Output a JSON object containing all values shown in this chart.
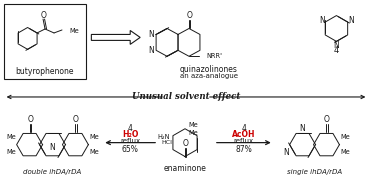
{
  "title": "Unusual solvent effect",
  "bg_color": "#ffffff",
  "text_color": "#1a1a1a",
  "red_color": "#cc0000",
  "figsize": [
    3.72,
    1.87
  ],
  "dpi": 100,
  "structures": {
    "butyrophenone_label": "butyrophenone",
    "quinazolinones_label": "quinazolinones",
    "aza_analogue_label": "an aza-analogue",
    "compound4_label": "4",
    "enaminone_label": "enaminone",
    "double_label": "double ihDA/rDA",
    "single_label": "single ihDA/rDA"
  },
  "reagents": {
    "left_top": "4",
    "left_red": "H₂O",
    "left_bot": "reflux",
    "left_yield": "65%",
    "right_top": "4",
    "right_red": "AcOH",
    "right_bot": "reflux",
    "right_yield": "87%",
    "hcl": "HCl",
    "h2n": "H₂N"
  },
  "divider_title": "Unusual solvent effect"
}
